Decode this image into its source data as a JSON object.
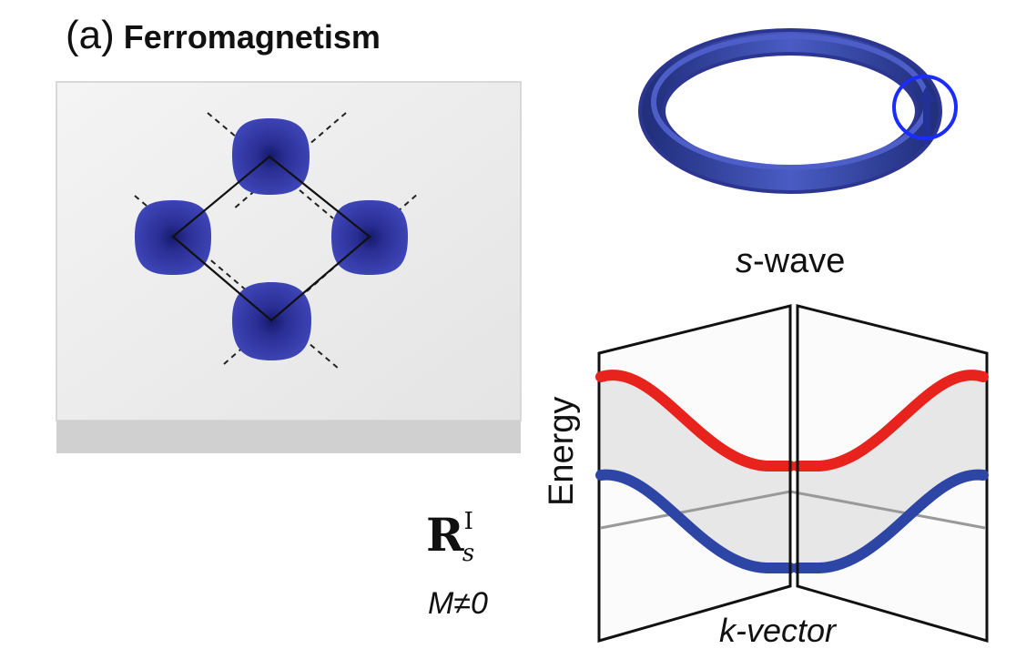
{
  "panel": {
    "label": "(a)",
    "title": "Ferromagnetism"
  },
  "ring": {
    "caption_prefix": "s",
    "caption_suffix": "-wave"
  },
  "band_plot": {
    "ylabel": "Energy",
    "xlabel": "k-vector"
  },
  "symbol": {
    "base": "R",
    "superscript": "I",
    "subscript": "s"
  },
  "magnetization": "M≠0",
  "colors": {
    "orbital_blue": "#2f35a8",
    "ring_blue": "#3443a8",
    "band_red": "#e8221c",
    "band_blue": "#2d46a5",
    "circle_highlight": "#1a2cff",
    "slab_top": "#ededed",
    "slab_side": "#cfcfcf"
  }
}
